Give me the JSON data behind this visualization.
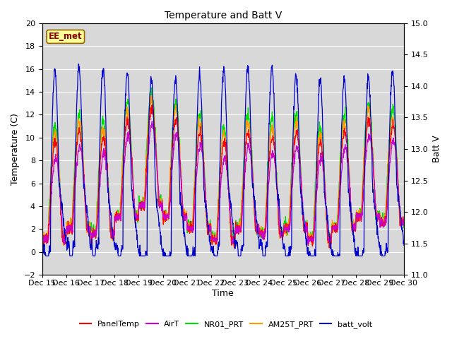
{
  "title": "Temperature and Batt V",
  "xlabel": "Time",
  "ylabel_left": "Temperature (C)",
  "ylabel_right": "Batt V",
  "ylim_left": [
    -2,
    20
  ],
  "ylim_right": [
    11.0,
    15.0
  ],
  "xtick_labels": [
    "Dec 15",
    "Dec 16",
    "Dec 17",
    "Dec 18",
    "Dec 19",
    "Dec 20",
    "Dec 21",
    "Dec 22",
    "Dec 23",
    "Dec 24",
    "Dec 25",
    "Dec 26",
    "Dec 27",
    "Dec 28",
    "Dec 29",
    "Dec 30"
  ],
  "station_label": "EE_met",
  "colors": {
    "PanelTemp": "#ff0000",
    "AirT": "#cc00cc",
    "NR01_PRT": "#00dd00",
    "AM25T_PRT": "#ff9900",
    "batt_volt": "#0000cc"
  },
  "background_color": "#ffffff",
  "plot_bg_color": "#d8d8d8",
  "grid_color": "#ffffff",
  "title_fontsize": 10,
  "label_fontsize": 9,
  "tick_fontsize": 8
}
